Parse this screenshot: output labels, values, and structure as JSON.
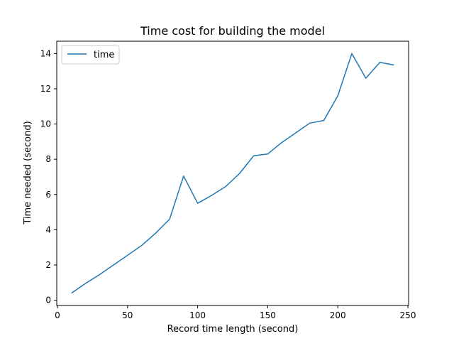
{
  "chart_data": {
    "type": "line",
    "title": "Time cost for building the model",
    "xlabel": "Record time length (second)",
    "ylabel": "Time needed (second)",
    "xlim": [
      -0.5,
      250.5
    ],
    "ylim": [
      -0.3,
      14.7
    ],
    "xticks": [
      0,
      50,
      100,
      150,
      200,
      250
    ],
    "yticks": [
      0,
      2,
      4,
      6,
      8,
      10,
      12,
      14
    ],
    "grid": false,
    "legend": "top-left",
    "series": [
      {
        "name": "time",
        "color": "#1f77b4",
        "x": [
          10,
          20,
          30,
          40,
          50,
          60,
          70,
          80,
          90,
          100,
          110,
          120,
          130,
          140,
          150,
          160,
          170,
          180,
          190,
          200,
          210,
          220,
          230,
          240
        ],
        "y": [
          0.4,
          0.95,
          1.45,
          2.0,
          2.55,
          3.1,
          3.8,
          4.6,
          7.05,
          5.5,
          5.95,
          6.45,
          7.2,
          8.2,
          8.3,
          8.95,
          9.5,
          10.05,
          10.2,
          11.6,
          14.0,
          12.6,
          13.5,
          13.35
        ]
      }
    ]
  }
}
